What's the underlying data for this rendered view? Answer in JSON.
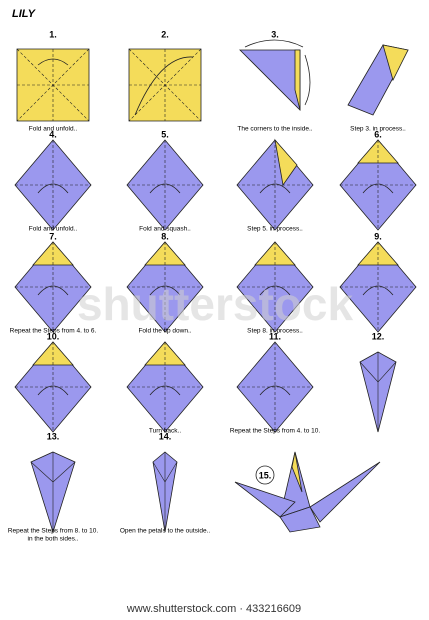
{
  "title": "LILY",
  "steps": [
    {
      "number": "1.",
      "caption": [
        "Fold and unfold.."
      ]
    },
    {
      "number": "2."
    },
    {
      "number": "3.",
      "caption": [
        "The corners to the inside.."
      ]
    },
    {
      "caption": [
        "Step 3. in process.."
      ]
    },
    {
      "number": "4.",
      "caption": [
        "Fold and unfold.."
      ]
    },
    {
      "number": "5.",
      "caption": [
        "Fold and squash.."
      ]
    },
    {
      "caption": [
        "Step 5. in process.."
      ]
    },
    {
      "number": "6."
    },
    {
      "number": "7.",
      "caption": [
        "Repeat the Steps from 4. to 6."
      ]
    },
    {
      "number": "8.",
      "caption": [
        "Fold the tip down.."
      ]
    },
    {
      "caption": [
        "Step 8. in process.."
      ]
    },
    {
      "number": "9."
    },
    {
      "number": "10."
    },
    {
      "caption": [
        "Turn back.."
      ]
    },
    {
      "number": "11.",
      "caption": [
        "Repeat the Steps from 4. to 10."
      ]
    },
    {
      "number": "12."
    },
    {
      "number": "13.",
      "caption": [
        "Repeat the Steps from 8. to 10.",
        "in the both sides.."
      ]
    },
    {
      "number": "14.",
      "caption": [
        "Open the petals to the outside.."
      ]
    },
    {
      "number": "15."
    }
  ],
  "watermark": "shutterstock",
  "footer": "www.shutterstock.com · 433216609"
}
